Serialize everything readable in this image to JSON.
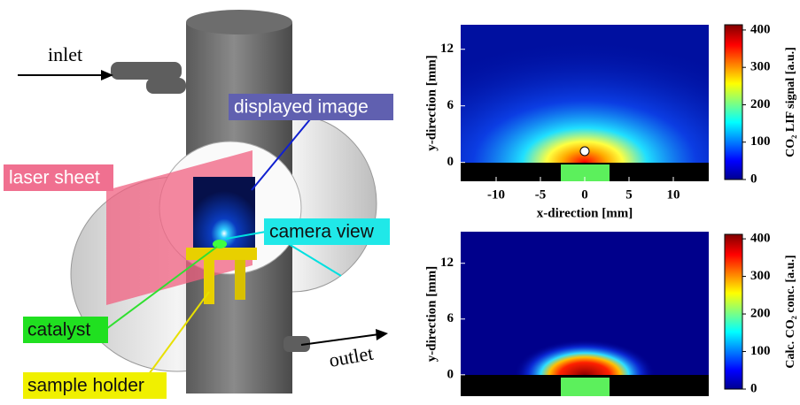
{
  "diagram": {
    "labels": {
      "inlet": "inlet",
      "displayed_image": "displayed image",
      "laser_sheet": "laser sheet",
      "camera_view": "camera view",
      "catalyst": "catalyst",
      "sample_holder": "sample holder",
      "outlet": "outlet"
    }
  },
  "panels": [
    {
      "xlabel": "x-direction [mm]",
      "ylabel": "y-direction [mm]",
      "xlim": [
        -14,
        14
      ],
      "xticks": [
        -10,
        -5,
        0,
        5,
        10
      ],
      "ylim": [
        -2,
        14.6
      ],
      "yticks": [
        0,
        6,
        12
      ],
      "colorbar": {
        "label": "CO₂ LIF signal [a.u.]",
        "lim": [
          0,
          414
        ],
        "ticks": [
          0,
          100,
          200,
          300,
          400
        ]
      }
    },
    {
      "ylabel": "y-direction [mm]",
      "ylim": [
        -2.3,
        15.4
      ],
      "yticks": [
        0,
        6,
        12
      ],
      "colorbar": {
        "label": "Calc. CO₂ conc. [a.u.]",
        "lim": [
          0,
          412
        ],
        "ticks": [
          0,
          100,
          200,
          300,
          400
        ]
      }
    }
  ]
}
